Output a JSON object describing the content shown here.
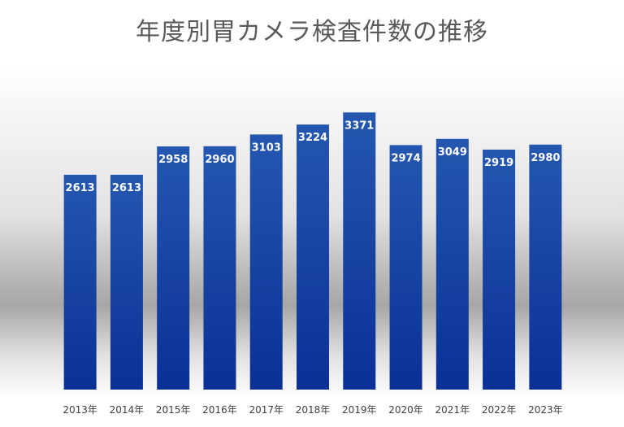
{
  "chart_data": {
    "type": "bar",
    "title": "年度別胃カメラ検査件数の推移",
    "xlabel": "",
    "ylabel": "",
    "categories": [
      "2013年",
      "2014年",
      "2015年",
      "2016年",
      "2017年",
      "2018年",
      "2019年",
      "2020年",
      "2021年",
      "2022年",
      "2023年"
    ],
    "values": [
      2613,
      2613,
      2958,
      2960,
      3103,
      3224,
      3371,
      2974,
      3049,
      2919,
      2980
    ],
    "ylim": [
      0,
      3700
    ],
    "grid": false,
    "legend": "none",
    "bar_color_top": "#2457b0",
    "bar_color_bottom": "#0a3096",
    "label_color": "#ffffff"
  }
}
